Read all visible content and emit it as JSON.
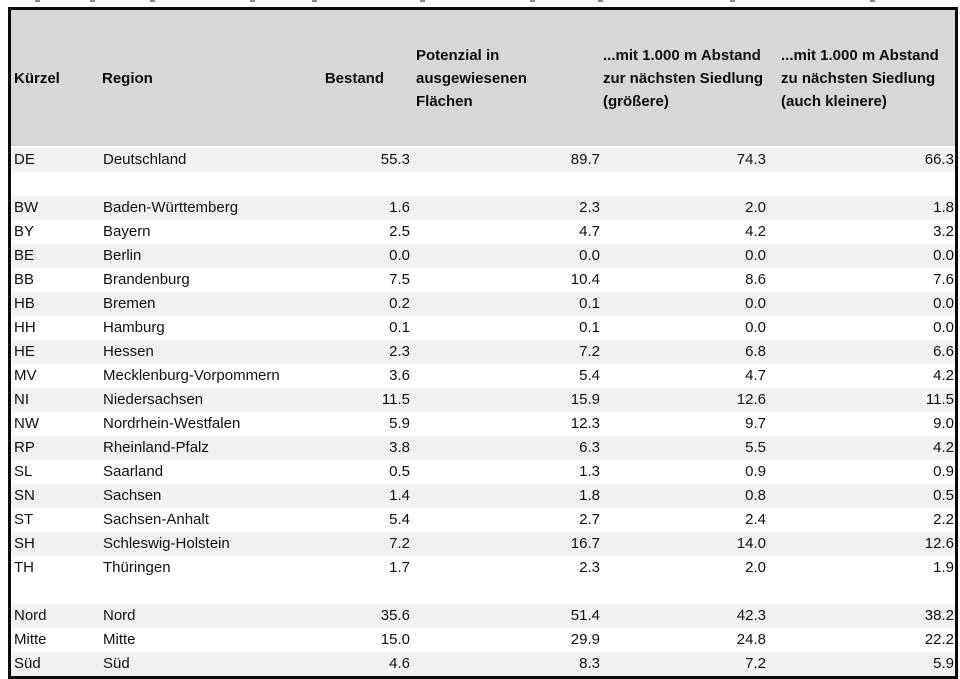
{
  "colors": {
    "header_bg": "#d7d7d7",
    "band_bg": "#f1f1f1",
    "row_bg": "#ffffff",
    "frame_border": "#0b0b0b",
    "text": "#101010"
  },
  "chart_data": {
    "type": "table",
    "legend_position": "none",
    "columns": [
      {
        "key": "kuerzel",
        "label": "Kürzel",
        "align": "left"
      },
      {
        "key": "region",
        "label": "Region",
        "align": "left"
      },
      {
        "key": "bestand",
        "label": "Bestand",
        "align": "right"
      },
      {
        "key": "potenzial",
        "label": "Potenzial in ausgewiesenen Flächen",
        "align": "right"
      },
      {
        "key": "abstand-groessere",
        "label": "...mit 1.000 m Abstand zur nächsten Siedlung (größere)",
        "align": "right"
      },
      {
        "key": "abstand-kleinere",
        "label": "...mit 1.000 m Abstand zu nächsten Siedlung (auch kleinere)",
        "align": "right"
      }
    ],
    "rows": [
      {
        "kind": "data",
        "shaded": true,
        "cells": [
          "DE",
          "Deutschland",
          "55.3",
          "89.7",
          "74.3",
          "66.3"
        ]
      },
      {
        "kind": "spacer",
        "shaded": false,
        "cells": [
          "",
          "",
          "",
          "",
          "",
          ""
        ]
      },
      {
        "kind": "data",
        "shaded": true,
        "cells": [
          "BW",
          "Baden-Württemberg",
          "1.6",
          "2.3",
          "2.0",
          "1.8"
        ]
      },
      {
        "kind": "data",
        "shaded": false,
        "cells": [
          "BY",
          "Bayern",
          "2.5",
          "4.7",
          "4.2",
          "3.2"
        ]
      },
      {
        "kind": "data",
        "shaded": true,
        "cells": [
          "BE",
          "Berlin",
          "0.0",
          "0.0",
          "0.0",
          "0.0"
        ]
      },
      {
        "kind": "data",
        "shaded": false,
        "cells": [
          "BB",
          "Brandenburg",
          "7.5",
          "10.4",
          "8.6",
          "7.6"
        ]
      },
      {
        "kind": "data",
        "shaded": true,
        "cells": [
          "HB",
          "Bremen",
          "0.2",
          "0.1",
          "0.0",
          "0.0"
        ]
      },
      {
        "kind": "data",
        "shaded": false,
        "cells": [
          "HH",
          "Hamburg",
          "0.1",
          "0.1",
          "0.0",
          "0.0"
        ]
      },
      {
        "kind": "data",
        "shaded": true,
        "cells": [
          "HE",
          "Hessen",
          "2.3",
          "7.2",
          "6.8",
          "6.6"
        ]
      },
      {
        "kind": "data",
        "shaded": false,
        "cells": [
          "MV",
          "Mecklenburg-Vorpommern",
          "3.6",
          "5.4",
          "4.7",
          "4.2"
        ]
      },
      {
        "kind": "data",
        "shaded": true,
        "cells": [
          "NI",
          "Niedersachsen",
          "11.5",
          "15.9",
          "12.6",
          "11.5"
        ]
      },
      {
        "kind": "data",
        "shaded": false,
        "cells": [
          "NW",
          "Nordrhein-Westfalen",
          "5.9",
          "12.3",
          "9.7",
          "9.0"
        ]
      },
      {
        "kind": "data",
        "shaded": true,
        "cells": [
          "RP",
          "Rheinland-Pfalz",
          "3.8",
          "6.3",
          "5.5",
          "4.2"
        ]
      },
      {
        "kind": "data",
        "shaded": false,
        "cells": [
          "SL",
          "Saarland",
          "0.5",
          "1.3",
          "0.9",
          "0.9"
        ]
      },
      {
        "kind": "data",
        "shaded": true,
        "cells": [
          "SN",
          "Sachsen",
          "1.4",
          "1.8",
          "0.8",
          "0.5"
        ]
      },
      {
        "kind": "data",
        "shaded": false,
        "cells": [
          "ST",
          "Sachsen-Anhalt",
          "5.4",
          "2.7",
          "2.4",
          "2.2"
        ]
      },
      {
        "kind": "data",
        "shaded": true,
        "cells": [
          "SH",
          "Schleswig-Holstein",
          "7.2",
          "16.7",
          "14.0",
          "12.6"
        ]
      },
      {
        "kind": "data",
        "shaded": false,
        "cells": [
          "TH",
          "Thüringen",
          "1.7",
          "2.3",
          "2.0",
          "1.9"
        ]
      },
      {
        "kind": "spacer",
        "shaded": false,
        "cells": [
          "",
          "",
          "",
          "",
          "",
          ""
        ]
      },
      {
        "kind": "data",
        "shaded": true,
        "cells": [
          "Nord",
          "Nord",
          "35.6",
          "51.4",
          "42.3",
          "38.2"
        ]
      },
      {
        "kind": "data",
        "shaded": false,
        "cells": [
          "Mitte",
          "Mitte",
          "15.0",
          "29.9",
          "24.8",
          "22.2"
        ]
      },
      {
        "kind": "data",
        "shaded": true,
        "cells": [
          "Süd",
          "Süd",
          "4.6",
          "8.3",
          "7.2",
          "5.9"
        ]
      }
    ]
  }
}
